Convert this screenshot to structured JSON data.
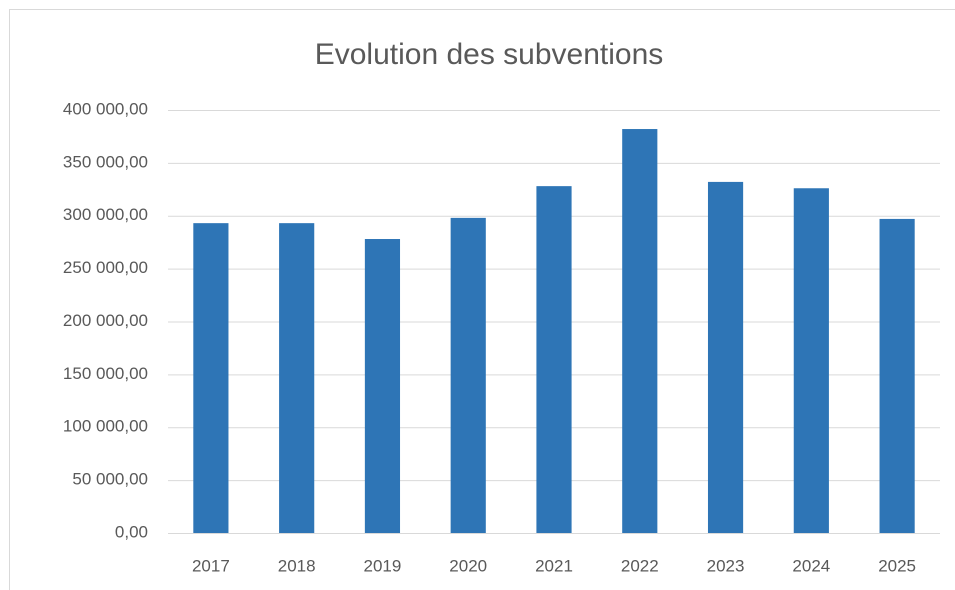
{
  "chart_data": {
    "type": "bar",
    "title": "Evolution des subventions",
    "categories": [
      "2017",
      "2018",
      "2019",
      "2020",
      "2021",
      "2022",
      "2023",
      "2024",
      "2025"
    ],
    "values": [
      293000,
      293000,
      278000,
      298000,
      328000,
      382000,
      332000,
      326000,
      297000
    ],
    "color": "#2e75b6",
    "ylim": [
      0,
      400000
    ],
    "yticks": [
      {
        "value": 0,
        "label": "0,00"
      },
      {
        "value": 50000,
        "label": "50 000,00"
      },
      {
        "value": 100000,
        "label": "100 000,00"
      },
      {
        "value": 150000,
        "label": "150 000,00"
      },
      {
        "value": 200000,
        "label": "200 000,00"
      },
      {
        "value": 250000,
        "label": "250 000,00"
      },
      {
        "value": 300000,
        "label": "300 000,00"
      },
      {
        "value": 350000,
        "label": "350 000,00"
      },
      {
        "value": 400000,
        "label": "400 000,00"
      }
    ],
    "grid": true
  }
}
